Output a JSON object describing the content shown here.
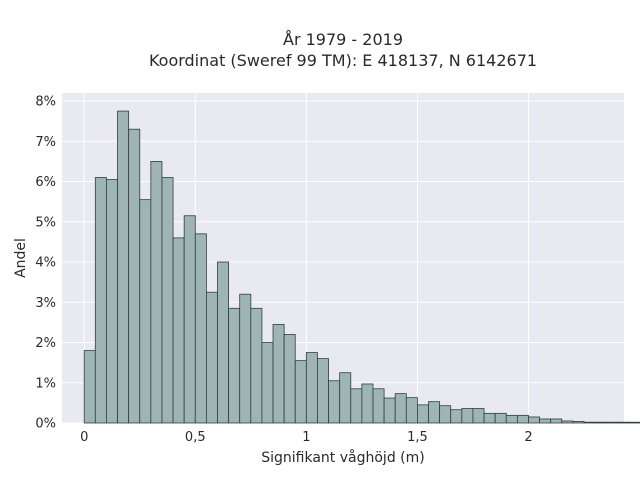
{
  "chart_data": {
    "type": "bar",
    "title_lines": [
      "År 1979 - 2019",
      "Koordinat (Sweref 99 TM): E 418137, N 6142671"
    ],
    "xlabel": "Signifikant våghöjd (m)",
    "ylabel": "Andel",
    "bin_start": 0,
    "bin_width": 0.05,
    "values": [
      1.8,
      6.1,
      6.05,
      7.75,
      7.3,
      5.55,
      6.5,
      6.1,
      4.6,
      5.15,
      4.7,
      3.25,
      4.0,
      2.85,
      3.2,
      2.85,
      2.0,
      2.45,
      2.2,
      1.55,
      1.75,
      1.6,
      1.05,
      1.25,
      0.85,
      0.97,
      0.85,
      0.62,
      0.73,
      0.63,
      0.45,
      0.53,
      0.43,
      0.33,
      0.36,
      0.36,
      0.24,
      0.24,
      0.19,
      0.19,
      0.15,
      0.1,
      0.1,
      0.05,
      0.04,
      0.02,
      0.02,
      0.02,
      0.02,
      0.02,
      0.01
    ],
    "xlim": [
      -0.1,
      2.43
    ],
    "ylim": [
      0,
      8.2
    ],
    "xticks": [
      0,
      0.5,
      1,
      1.5,
      2
    ],
    "xtick_labels": [
      "0",
      "0,5",
      "1",
      "1,5",
      "2"
    ],
    "yticks": [
      0,
      1,
      2,
      3,
      4,
      5,
      6,
      7,
      8
    ],
    "ytick_labels": [
      "0%",
      "1%",
      "2%",
      "3%",
      "4%",
      "5%",
      "6%",
      "7%",
      "8%"
    ],
    "grid": true,
    "colors": {
      "bar_fill": "#9fb5b5",
      "bar_edge": "#2f3f3f",
      "plot_bg": "#e8e9f1",
      "grid": "#ffffff"
    }
  }
}
